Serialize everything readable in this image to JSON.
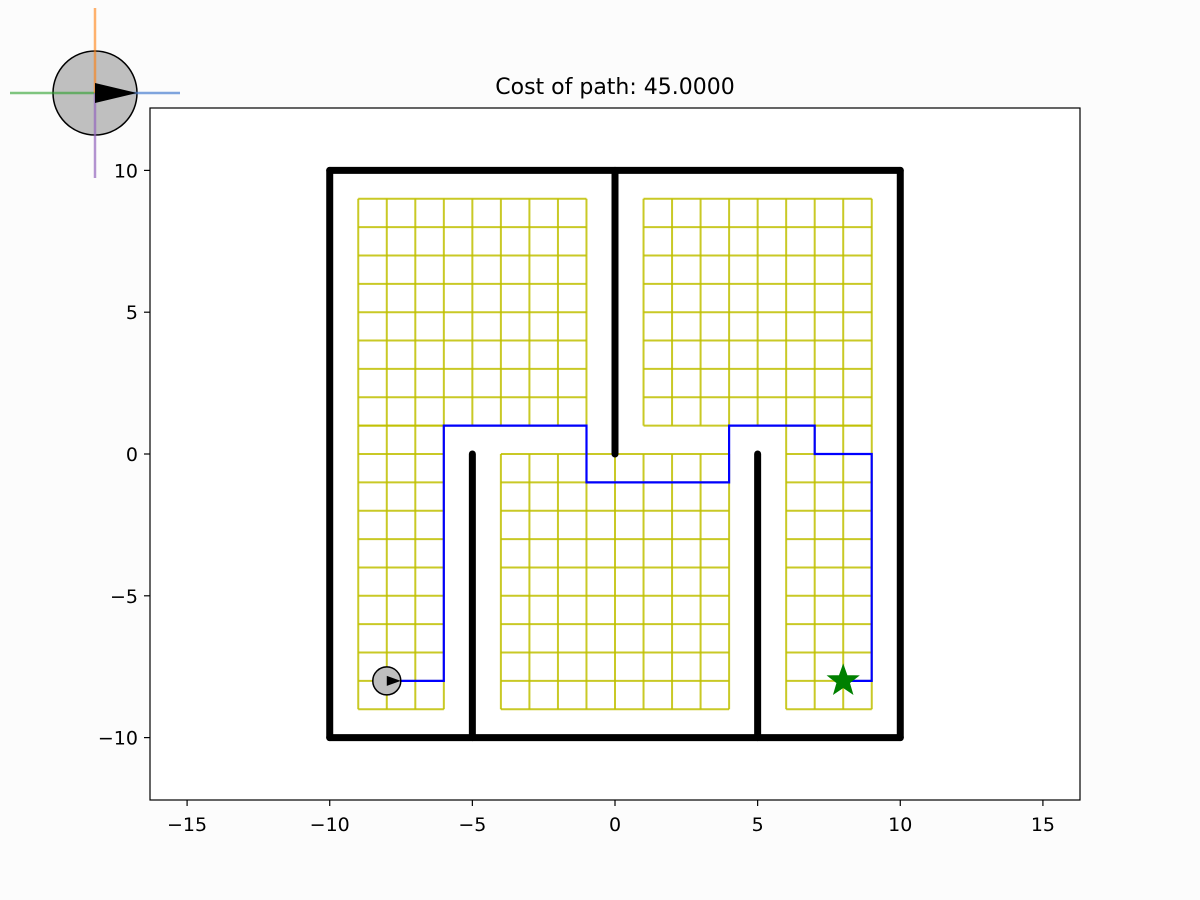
{
  "chart_data": {
    "type": "path-planning",
    "title": "Cost of path: 45.0000",
    "xlabel": "",
    "ylabel": "",
    "xlim": [
      -16.3,
      16.3
    ],
    "ylim": [
      -12.2,
      12.2
    ],
    "xticks": [
      {
        "value": -15,
        "label": "−15"
      },
      {
        "value": -10,
        "label": "−10"
      },
      {
        "value": -5,
        "label": "−5"
      },
      {
        "value": 0,
        "label": "0"
      },
      {
        "value": 5,
        "label": "5"
      },
      {
        "value": 10,
        "label": "10"
      },
      {
        "value": 15,
        "label": "15"
      }
    ],
    "yticks": [
      {
        "value": 10,
        "label": "10"
      },
      {
        "value": 5,
        "label": "5"
      },
      {
        "value": 0,
        "label": "0"
      },
      {
        "value": -5,
        "label": "−5"
      },
      {
        "value": -10,
        "label": "−10"
      }
    ],
    "walls": [
      [
        [
          -10,
          -10
        ],
        [
          10,
          -10
        ]
      ],
      [
        [
          10,
          -10
        ],
        [
          10,
          10
        ]
      ],
      [
        [
          10,
          10
        ],
        [
          -10,
          10
        ]
      ],
      [
        [
          -10,
          10
        ],
        [
          -10,
          -10
        ]
      ],
      [
        [
          0,
          10
        ],
        [
          0,
          0
        ]
      ],
      [
        [
          -5,
          0
        ],
        [
          -5,
          -10
        ]
      ],
      [
        [
          5,
          0
        ],
        [
          5,
          -10
        ]
      ]
    ],
    "grid_regions": [
      {
        "x": [
          -9,
          -1
        ],
        "y": [
          1,
          9
        ]
      },
      {
        "x": [
          1,
          9
        ],
        "y": [
          1,
          9
        ]
      },
      {
        "x": [
          -9,
          -6
        ],
        "y": [
          -9,
          1
        ]
      },
      {
        "x": [
          -4,
          4
        ],
        "y": [
          -9,
          0
        ]
      },
      {
        "x": [
          6,
          9
        ],
        "y": [
          -9,
          1
        ]
      }
    ],
    "path": [
      [
        -8,
        -8
      ],
      [
        -6,
        -8
      ],
      [
        -6,
        1
      ],
      [
        -1,
        1
      ],
      [
        -1,
        -1
      ],
      [
        4,
        -1
      ],
      [
        4,
        1
      ],
      [
        7,
        1
      ],
      [
        7,
        0
      ],
      [
        9,
        0
      ],
      [
        9,
        -8
      ],
      [
        8,
        -8
      ]
    ],
    "start": {
      "x": -8,
      "y": -8
    },
    "goal": {
      "x": 8,
      "y": -8
    },
    "colors": {
      "wall": "#000000",
      "grid": "#bfbf00",
      "path": "#0000ff",
      "goal": "#008000",
      "robot_fill": "#bfbfbf",
      "axis_x": "#4a7fd0",
      "axis_y": "#ff7f0e",
      "axis_neg_x": "#2ca02c",
      "axis_neg_y": "#9467bd"
    }
  }
}
